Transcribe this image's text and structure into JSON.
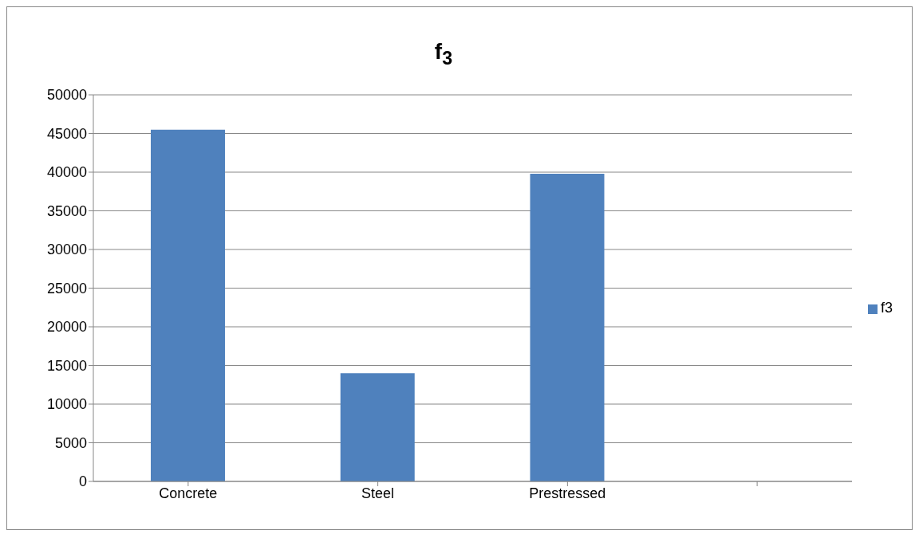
{
  "chart_data": {
    "type": "bar",
    "title": "f$_{3}$",
    "categories": [
      "Concrete",
      "Steel",
      "Prestressed",
      null
    ],
    "series": [
      {
        "name": "f3",
        "color": "#4f81bd",
        "values": [
          45500,
          14000,
          39800,
          null
        ]
      }
    ],
    "ylim": [
      0,
      50000
    ],
    "yticks": [
      0,
      5000,
      10000,
      15000,
      20000,
      25000,
      30000,
      35000,
      40000,
      45000,
      50000
    ],
    "grid": "y",
    "legend": "right"
  }
}
